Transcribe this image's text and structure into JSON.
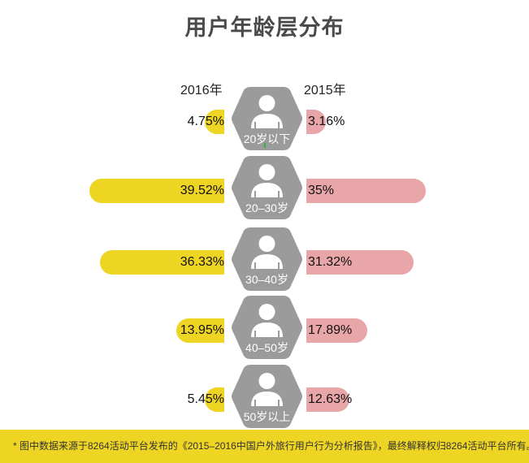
{
  "title": "用户年龄层分布",
  "legend": {
    "left_year": "2016年",
    "right_year": "2015年"
  },
  "colors": {
    "y2016": "#eed523",
    "y2015": "#e8a6a8",
    "hex": "#9b9b9b",
    "footer_bg": "#eed523"
  },
  "rows": [
    {
      "age": "20岁以下",
      "v2016": "4.75%",
      "v2015": "3.16%"
    },
    {
      "age": "20–30岁",
      "v2016": "39.52%",
      "v2015": "35%"
    },
    {
      "age": "30–40岁",
      "v2016": "36.33%",
      "v2015": "31.32%"
    },
    {
      "age": "40–50岁",
      "v2016": "13.95%",
      "v2015": "17.89%"
    },
    {
      "age": "50岁以上",
      "v2016": "5.45%",
      "v2015": "12.63%"
    }
  ],
  "footer": "* 图中数据来源于8264活动平台发布的《2015–2016中国户外旅行用户行为分析报告》，最终解释权归8264活动平台所有。",
  "chart_data": {
    "type": "bar",
    "title": "用户年龄层分布",
    "orientation": "horizontal-butterfly",
    "categories": [
      "20岁以下",
      "20-30岁",
      "30-40岁",
      "40-50岁",
      "50岁以上"
    ],
    "series": [
      {
        "name": "2016年",
        "values": [
          4.75,
          39.52,
          36.33,
          13.95,
          5.45
        ],
        "color": "#eed523",
        "side": "left"
      },
      {
        "name": "2015年",
        "values": [
          3.16,
          35,
          31.32,
          17.89,
          12.63
        ],
        "color": "#e8a6a8",
        "side": "right"
      }
    ],
    "unit": "%",
    "xlabel": "",
    "ylabel": "",
    "grid": false,
    "legend_position": "top",
    "annotation": "* 图中数据来源于8264活动平台发布的《2015–2016中国户外旅行用户行为分析报告》，最终解释权归8264活动平台所有。"
  }
}
